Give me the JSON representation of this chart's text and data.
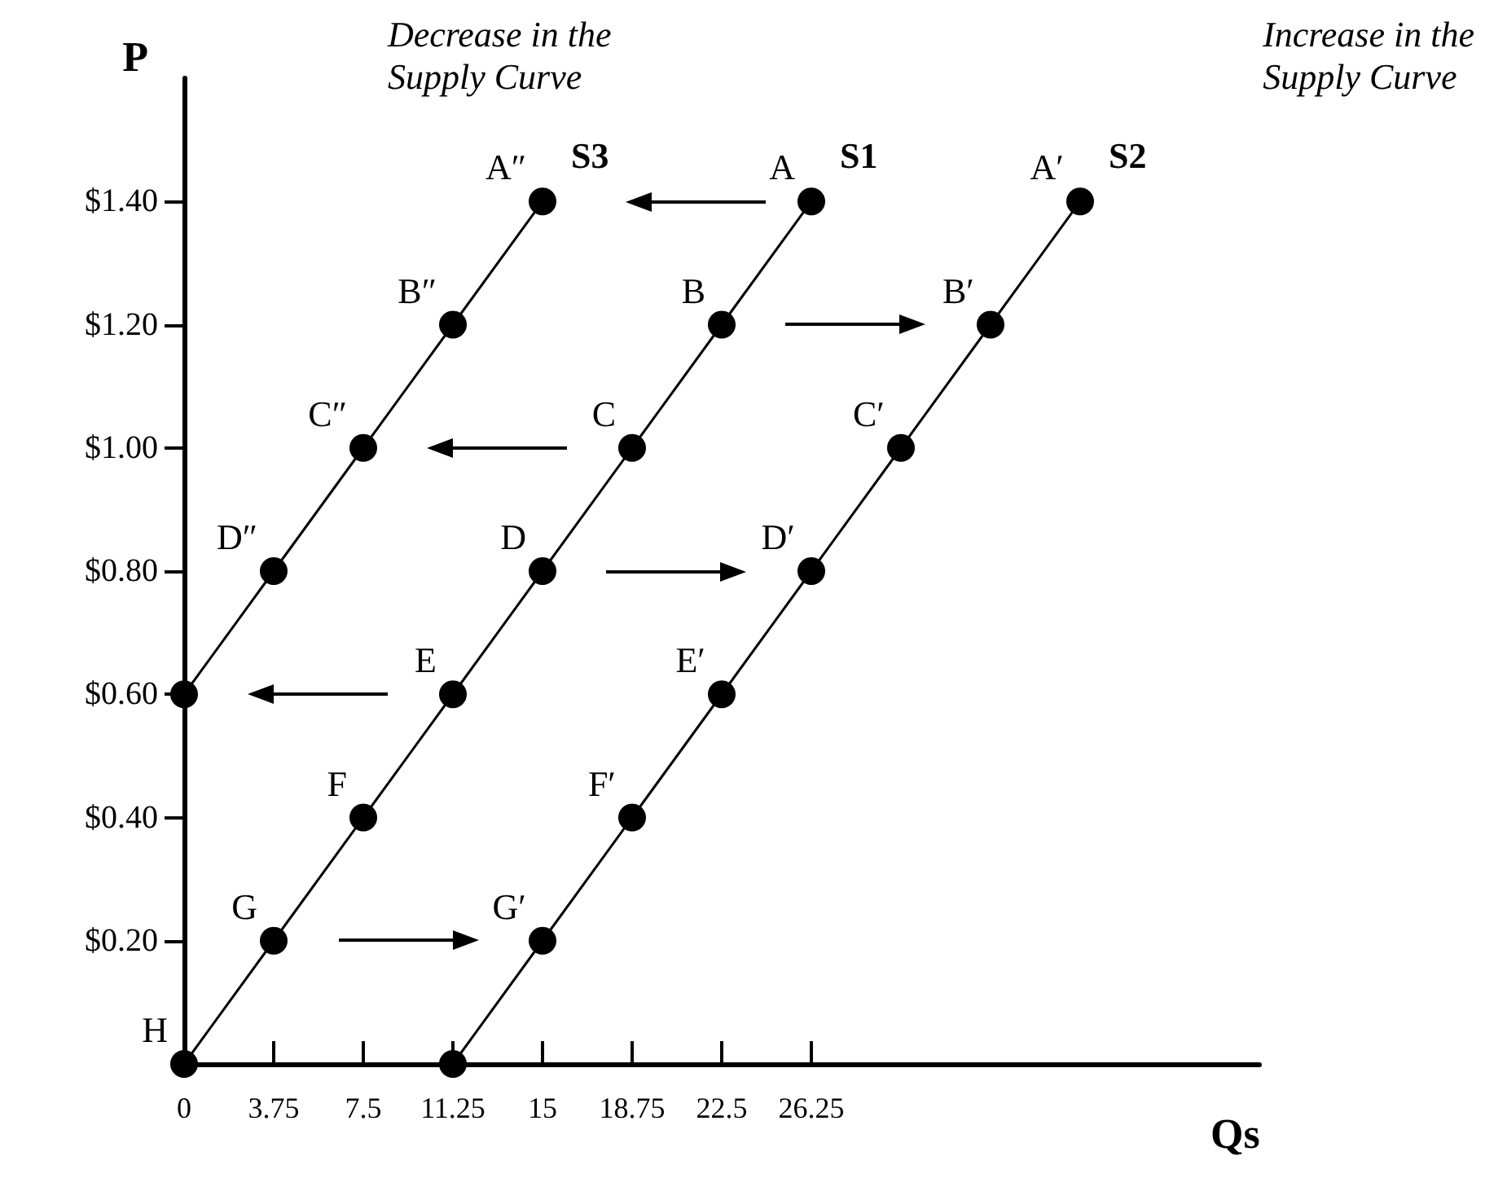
{
  "chart_data": {
    "type": "line",
    "xlabel": "Qs",
    "ylabel": "P",
    "xlim": [
      0,
      45
    ],
    "ylim": [
      0,
      1.6
    ],
    "xticks": [
      {
        "value": 0,
        "label": "0"
      },
      3.75,
      7.5,
      11.25,
      15,
      18.75,
      22.5,
      26.25
    ],
    "yticks": [
      {
        "value": 0.2,
        "label": "$0.20"
      },
      {
        "value": 0.4,
        "label": "$0.40"
      },
      {
        "value": 0.6,
        "label": "$0.60"
      },
      {
        "value": 0.8,
        "label": "$0.80"
      },
      {
        "value": 1.0,
        "label": "$1.00"
      },
      {
        "value": 1.2,
        "label": "$1.20"
      },
      {
        "value": 1.4,
        "label": "$1.40"
      }
    ],
    "grid": false,
    "legend": false,
    "marker": "circle",
    "line_style": "solid",
    "series": [
      {
        "name": "S1",
        "color": "#000000",
        "x": [
          0,
          3.75,
          7.5,
          11.25,
          15,
          18.75,
          22.5,
          26.25
        ],
        "values": [
          0,
          0.2,
          0.4,
          0.6,
          0.8,
          1.0,
          1.2,
          1.4
        ]
      },
      {
        "name": "S2",
        "color": "#000000",
        "x": [
          11.25,
          15,
          18.75,
          22.5,
          26.25,
          30,
          33.75,
          37.5
        ],
        "values": [
          0,
          0.2,
          0.4,
          0.6,
          0.8,
          1.0,
          1.2,
          1.4
        ]
      },
      {
        "name": "S3",
        "color": "#000000",
        "x": [
          0,
          3.75,
          7.5,
          11.25,
          15
        ],
        "values": [
          0.6,
          0.8,
          1.0,
          1.2,
          1.4
        ]
      }
    ],
    "annotations": [
      "Decrease in the\nSupply Curve",
      "Increase in the\nSupply Curve",
      {
        "text": "A",
        "x": 26.25,
        "y": 1.4
      },
      {
        "text": "B",
        "x": 22.5,
        "y": 1.2
      },
      {
        "text": "C",
        "x": 18.75,
        "y": 1.0
      },
      {
        "text": "D",
        "x": 15,
        "y": 0.8
      },
      {
        "text": "E",
        "x": 11.25,
        "y": 0.6
      },
      {
        "text": "F",
        "x": 7.5,
        "y": 0.4
      },
      {
        "text": "G",
        "x": 3.75,
        "y": 0.2
      },
      {
        "text": "H",
        "x": 0,
        "y": 0
      },
      {
        "text": "A′",
        "x": 37.5,
        "y": 1.4
      },
      {
        "text": "B′",
        "x": 33.75,
        "y": 1.2
      },
      {
        "text": "C′",
        "x": 30,
        "y": 1.0
      },
      {
        "text": "D′",
        "x": 26.25,
        "y": 0.8
      },
      {
        "text": "E′",
        "x": 22.5,
        "y": 0.6
      },
      {
        "text": "F′",
        "x": 18.75,
        "y": 0.4
      },
      {
        "text": "G′",
        "x": 15,
        "y": 0.2
      },
      {
        "text": "A″",
        "x": 15,
        "y": 1.4
      },
      {
        "text": "B″",
        "x": 11.25,
        "y": 1.2
      },
      {
        "text": "C″",
        "x": 7.5,
        "y": 1.0
      },
      {
        "text": "D″",
        "x": 3.75,
        "y": 0.8
      }
    ]
  }
}
